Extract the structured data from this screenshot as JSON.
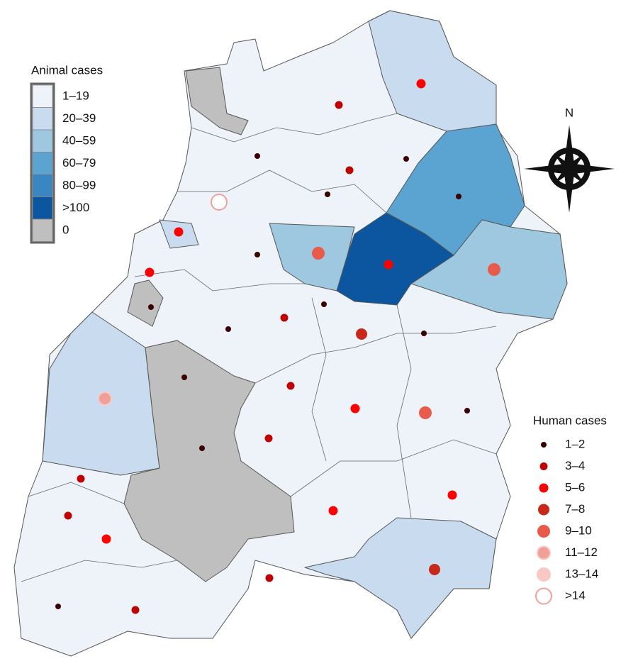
{
  "legend_animal": {
    "title": "Animal cases",
    "items": [
      "1–19",
      "20–39",
      "40–59",
      "60–79",
      "80–99",
      ">100",
      "0"
    ]
  },
  "legend_human": {
    "title": "Human cases",
    "items": [
      "1–2",
      "3–4",
      "5–6",
      "7–8",
      "9–10",
      "11–12",
      "13–14",
      ">14"
    ]
  },
  "compass": "N"
}
